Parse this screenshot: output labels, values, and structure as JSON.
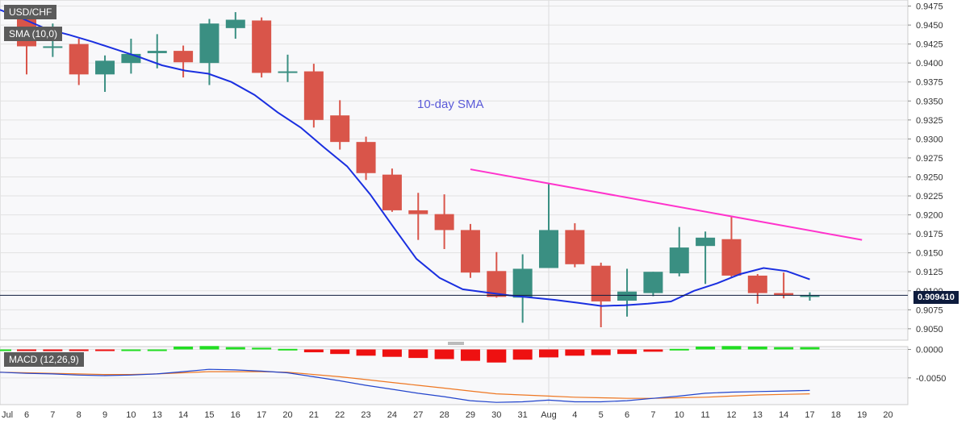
{
  "window": {
    "symbol": "USD/CHF",
    "indicator_label": "SMA (10,0)",
    "macd_label": "MACD (12,26,9)",
    "sma_annotation": "10-day SMA",
    "current_price": "0.909410"
  },
  "chart_data": [
    {
      "type": "candlestick",
      "title": "USD/CHF",
      "x_tick_labels": [
        "Jul",
        "6",
        "7",
        "8",
        "9",
        "10",
        "13",
        "14",
        "15",
        "16",
        "17",
        "20",
        "21",
        "22",
        "23",
        "24",
        "27",
        "28",
        "29",
        "30",
        "31",
        "Aug",
        "4",
        "5",
        "6",
        "7",
        "10",
        "11",
        "12",
        "13",
        "14",
        "17",
        "18",
        "19",
        "20"
      ],
      "y_tick_labels": [
        "0.9475",
        "0.9450",
        "0.9425",
        "0.9400",
        "0.9375",
        "0.9350",
        "0.9325",
        "0.9300",
        "0.9275",
        "0.9250",
        "0.9225",
        "0.9200",
        "0.9175",
        "0.9150",
        "0.9125",
        "0.9100",
        "0.9075",
        "0.9050"
      ],
      "ylim": [
        0.9035,
        0.9483
      ],
      "candles": [
        {
          "date": "Jul 6",
          "open": 0.947,
          "high": 0.9475,
          "low": 0.9385,
          "close": 0.9422
        },
        {
          "date": "Jul 7",
          "open": 0.942,
          "high": 0.9452,
          "low": 0.9408,
          "close": 0.9422
        },
        {
          "date": "Jul 8",
          "open": 0.9425,
          "high": 0.9432,
          "low": 0.9371,
          "close": 0.9385
        },
        {
          "date": "Jul 9",
          "open": 0.9385,
          "high": 0.941,
          "low": 0.9362,
          "close": 0.9403
        },
        {
          "date": "Jul 10",
          "open": 0.94,
          "high": 0.9432,
          "low": 0.9386,
          "close": 0.9412
        },
        {
          "date": "Jul 13",
          "open": 0.9413,
          "high": 0.9438,
          "low": 0.9393,
          "close": 0.9416
        },
        {
          "date": "Jul 14",
          "open": 0.9416,
          "high": 0.9423,
          "low": 0.9381,
          "close": 0.9401
        },
        {
          "date": "Jul 15",
          "open": 0.94,
          "high": 0.9458,
          "low": 0.9371,
          "close": 0.9452
        },
        {
          "date": "Jul 16",
          "open": 0.9446,
          "high": 0.9467,
          "low": 0.9432,
          "close": 0.9457
        },
        {
          "date": "Jul 17",
          "open": 0.9456,
          "high": 0.946,
          "low": 0.9381,
          "close": 0.9387
        },
        {
          "date": "Jul 20",
          "open": 0.9389,
          "high": 0.9411,
          "low": 0.9375,
          "close": 0.9389
        },
        {
          "date": "Jul 21",
          "open": 0.9389,
          "high": 0.9399,
          "low": 0.9315,
          "close": 0.9325
        },
        {
          "date": "Jul 22",
          "open": 0.9331,
          "high": 0.9351,
          "low": 0.9286,
          "close": 0.9296
        },
        {
          "date": "Jul 23",
          "open": 0.9296,
          "high": 0.9303,
          "low": 0.9246,
          "close": 0.9255
        },
        {
          "date": "Jul 24",
          "open": 0.9253,
          "high": 0.9261,
          "low": 0.9204,
          "close": 0.9206
        },
        {
          "date": "Jul 27",
          "open": 0.9206,
          "high": 0.9229,
          "low": 0.9167,
          "close": 0.9201
        },
        {
          "date": "Jul 28",
          "open": 0.9201,
          "high": 0.9227,
          "low": 0.9155,
          "close": 0.918
        },
        {
          "date": "Jul 29",
          "open": 0.918,
          "high": 0.9188,
          "low": 0.9117,
          "close": 0.9124
        },
        {
          "date": "Jul 30",
          "open": 0.9126,
          "high": 0.9151,
          "low": 0.9091,
          "close": 0.9092
        },
        {
          "date": "Jul 31",
          "open": 0.9091,
          "high": 0.9148,
          "low": 0.9058,
          "close": 0.9129
        },
        {
          "date": "Aug 3",
          "open": 0.913,
          "high": 0.9241,
          "low": 0.913,
          "close": 0.918
        },
        {
          "date": "Aug 4",
          "open": 0.918,
          "high": 0.9189,
          "low": 0.9131,
          "close": 0.9135
        },
        {
          "date": "Aug 5",
          "open": 0.9133,
          "high": 0.9137,
          "low": 0.9052,
          "close": 0.9086
        },
        {
          "date": "Aug 6",
          "open": 0.9087,
          "high": 0.9129,
          "low": 0.9066,
          "close": 0.9099
        },
        {
          "date": "Aug 7",
          "open": 0.9097,
          "high": 0.9125,
          "low": 0.9093,
          "close": 0.9125
        },
        {
          "date": "Aug 10",
          "open": 0.9123,
          "high": 0.9184,
          "low": 0.9119,
          "close": 0.9157
        },
        {
          "date": "Aug 11",
          "open": 0.9159,
          "high": 0.9178,
          "low": 0.9109,
          "close": 0.917
        },
        {
          "date": "Aug 12",
          "open": 0.9168,
          "high": 0.9198,
          "low": 0.9118,
          "close": 0.912
        },
        {
          "date": "Aug 13",
          "open": 0.912,
          "high": 0.9122,
          "low": 0.9083,
          "close": 0.9097
        },
        {
          "date": "Aug 14",
          "open": 0.9097,
          "high": 0.9124,
          "low": 0.909,
          "close": 0.9094
        },
        {
          "date": "Aug 17",
          "open": 0.9094,
          "high": 0.9098,
          "low": 0.9087,
          "close": 0.9094
        }
      ],
      "sma10": [
        0.947,
        0.9458,
        0.9445,
        0.9437,
        0.9428,
        0.9418,
        0.9408,
        0.9397,
        0.939,
        0.9386,
        0.9375,
        0.9358,
        0.9335,
        0.9315,
        0.9289,
        0.9264,
        0.9227,
        0.9184,
        0.9142,
        0.9117,
        0.9102,
        0.9098,
        0.9094,
        0.9091,
        0.9088,
        0.9084,
        0.908,
        0.9081,
        0.9083,
        0.9086,
        0.91,
        0.911,
        0.9122,
        0.913,
        0.9126,
        0.9115
      ],
      "trendline": {
        "start": {
          "date": "Jul 29",
          "value": 0.926
        },
        "end": {
          "date": "Aug 19",
          "value": 0.9167
        },
        "color": "#ff33cc"
      },
      "colors": {
        "up": "#3a8f82",
        "down": "#d9554a",
        "sma": "#1a2fe0",
        "grid": "#e2e2e2"
      }
    },
    {
      "type": "bar",
      "title": "MACD (12,26,9)",
      "y_tick_labels": [
        "0.0000",
        "-0.0050"
      ],
      "ylim": [
        -0.0097,
        0.0005
      ],
      "histogram": [
        0.0,
        -0.0002,
        -0.0003,
        -0.0002,
        -0.0001,
        0.0,
        0.0,
        0.0005,
        0.0006,
        0.0004,
        0.0003,
        0.0001,
        -0.0005,
        -0.0008,
        -0.0011,
        -0.0013,
        -0.0015,
        -0.0017,
        -0.002,
        -0.0023,
        -0.0018,
        -0.0014,
        -0.0011,
        -0.001,
        -0.0008,
        -0.0004,
        0.0001,
        0.0005,
        0.0006,
        0.0005,
        0.0004,
        0.0004
      ],
      "macd_line": [
        -0.004,
        -0.0042,
        -0.0043,
        -0.0045,
        -0.0046,
        -0.0045,
        -0.0043,
        -0.0039,
        -0.0035,
        -0.0036,
        -0.0038,
        -0.0041,
        -0.0048,
        -0.0055,
        -0.0063,
        -0.007,
        -0.0077,
        -0.0083,
        -0.009,
        -0.0093,
        -0.0092,
        -0.0089,
        -0.0092,
        -0.0092,
        -0.009,
        -0.0086,
        -0.0082,
        -0.0077,
        -0.0075,
        -0.0074,
        -0.0073,
        -0.0072
      ],
      "signal_line": [
        -0.004,
        -0.0041,
        -0.0042,
        -0.0043,
        -0.0044,
        -0.0044,
        -0.0043,
        -0.0041,
        -0.0039,
        -0.0039,
        -0.0039,
        -0.004,
        -0.0044,
        -0.0048,
        -0.0053,
        -0.0058,
        -0.0063,
        -0.0068,
        -0.0073,
        -0.0078,
        -0.008,
        -0.0082,
        -0.0084,
        -0.0085,
        -0.0086,
        -0.0086,
        -0.0085,
        -0.0084,
        -0.0082,
        -0.008,
        -0.0079,
        -0.0078
      ],
      "colors": {
        "hist_pos": "#22dd22",
        "hist_neg": "#ee1111",
        "macd": "#2244cc",
        "signal": "#ee7722"
      }
    }
  ]
}
